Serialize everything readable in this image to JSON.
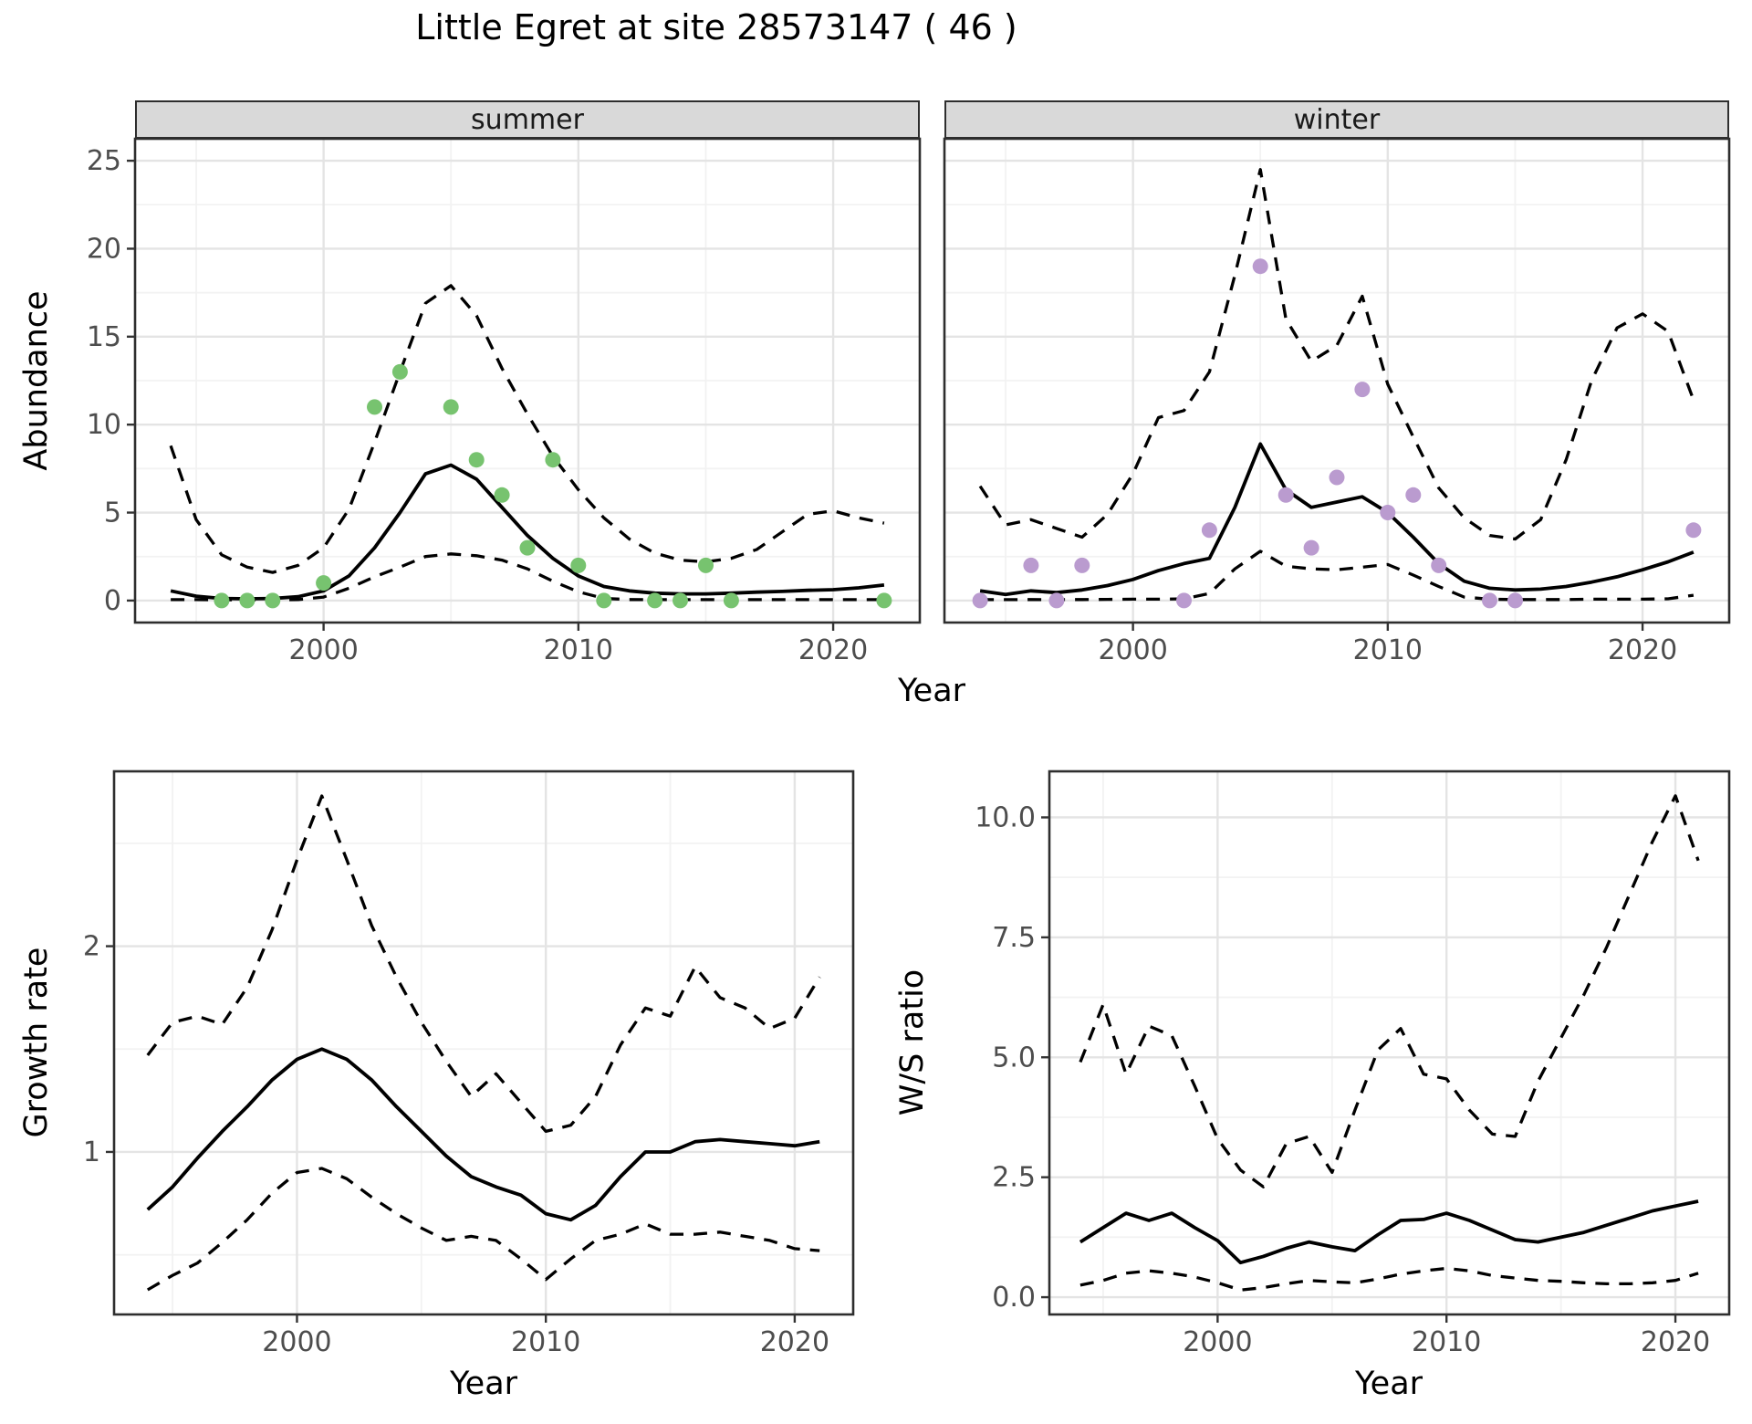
{
  "title": "Little Egret at site 28573147 ( 46 )",
  "facets": {
    "summer": "summer",
    "winter": "winter"
  },
  "axis_labels": {
    "abundance": "Abundance",
    "year": "Year",
    "growth_rate": "Growth rate",
    "ws_ratio": "W/S ratio"
  },
  "colors": {
    "summer_points": "#77C36F",
    "winter_points": "#BA9BCF",
    "line": "#000000",
    "panel_border": "#2E2E2E",
    "grid_major": "#E4E4E4",
    "grid_minor": "#F2F2F2",
    "strip_bg": "#D9D9D9",
    "tick_text": "#4D4D4D"
  },
  "chart_data": [
    {
      "id": "abundance_summer",
      "type": "line",
      "facet": "summer",
      "xlabel": "Year",
      "ylabel": "Abundance",
      "xlim": [
        1992.6,
        2023.4
      ],
      "ylim": [
        -1.25,
        26.25
      ],
      "x_tick_values": [
        2000,
        2010,
        2020
      ],
      "x_tick_labels": [
        "2000",
        "2010",
        "2020"
      ],
      "x_minor": [
        1995,
        2005,
        2015
      ],
      "y_tick_values": [
        0,
        5,
        10,
        15,
        20,
        25
      ],
      "y_tick_labels": [
        "0",
        "5",
        "10",
        "15",
        "20",
        "25"
      ],
      "y_minor": [
        2.5,
        7.5,
        12.5,
        17.5,
        22.5
      ],
      "years": [
        1994,
        1995,
        1996,
        1997,
        1998,
        1999,
        2000,
        2001,
        2002,
        2003,
        2004,
        2005,
        2006,
        2007,
        2008,
        2009,
        2010,
        2011,
        2012,
        2013,
        2014,
        2015,
        2016,
        2017,
        2018,
        2019,
        2020,
        2021,
        2022
      ],
      "series": {
        "mean": [
          0.55,
          0.25,
          0.12,
          0.1,
          0.12,
          0.22,
          0.55,
          1.4,
          3.0,
          5.0,
          7.2,
          7.7,
          6.9,
          5.3,
          3.7,
          2.4,
          1.4,
          0.8,
          0.55,
          0.42,
          0.38,
          0.38,
          0.42,
          0.48,
          0.52,
          0.58,
          0.62,
          0.72,
          0.88
        ],
        "upper_ci": [
          8.8,
          4.6,
          2.6,
          1.9,
          1.6,
          2.0,
          3.0,
          5.2,
          9.0,
          13.0,
          16.9,
          17.9,
          16.2,
          13.2,
          10.6,
          8.2,
          6.3,
          4.7,
          3.5,
          2.7,
          2.3,
          2.2,
          2.4,
          2.9,
          3.9,
          4.9,
          5.1,
          4.7,
          4.4
        ],
        "lower_ci": [
          0.05,
          0.05,
          0.04,
          0.04,
          0.04,
          0.05,
          0.2,
          0.7,
          1.35,
          1.9,
          2.5,
          2.65,
          2.55,
          2.3,
          1.8,
          1.1,
          0.5,
          0.12,
          0.06,
          0.05,
          0.05,
          0.05,
          0.05,
          0.05,
          0.05,
          0.05,
          0.05,
          0.05,
          0.05
        ]
      },
      "points": {
        "years": [
          1996,
          1997,
          1998,
          2000,
          2002,
          2003,
          2005,
          2006,
          2007,
          2008,
          2009,
          2010,
          2011,
          2013,
          2014,
          2015,
          2016,
          2022
        ],
        "values": [
          0,
          0,
          0,
          1,
          11,
          13,
          11,
          8,
          6,
          3,
          8,
          2,
          0,
          0,
          0,
          2,
          0,
          0
        ],
        "color": "#77C36F"
      }
    },
    {
      "id": "abundance_winter",
      "type": "line",
      "facet": "winter",
      "xlabel": "Year",
      "ylabel": "Abundance",
      "xlim": [
        1992.6,
        2023.4
      ],
      "ylim": [
        -1.25,
        26.25
      ],
      "x_tick_values": [
        2000,
        2010,
        2020
      ],
      "x_tick_labels": [
        "2000",
        "2010",
        "2020"
      ],
      "x_minor": [
        1995,
        2005,
        2015
      ],
      "y_tick_values": [
        0,
        5,
        10,
        15,
        20,
        25
      ],
      "y_tick_labels": [
        "0",
        "5",
        "10",
        "15",
        "20",
        "25"
      ],
      "y_minor": [
        2.5,
        7.5,
        12.5,
        17.5,
        22.5
      ],
      "years": [
        1994,
        1995,
        1996,
        1997,
        1998,
        1999,
        2000,
        2001,
        2002,
        2003,
        2004,
        2005,
        2006,
        2007,
        2008,
        2009,
        2010,
        2011,
        2012,
        2013,
        2014,
        2015,
        2016,
        2017,
        2018,
        2019,
        2020,
        2021,
        2022
      ],
      "series": {
        "mean": [
          0.55,
          0.35,
          0.55,
          0.45,
          0.6,
          0.85,
          1.2,
          1.7,
          2.1,
          2.4,
          5.3,
          8.9,
          6.3,
          5.3,
          5.6,
          5.9,
          5.0,
          3.6,
          2.1,
          1.1,
          0.7,
          0.6,
          0.65,
          0.8,
          1.05,
          1.35,
          1.75,
          2.2,
          2.75
        ],
        "upper_ci": [
          6.5,
          4.3,
          4.6,
          4.1,
          3.6,
          4.9,
          7.2,
          10.4,
          10.8,
          13.0,
          18.5,
          24.5,
          16.0,
          13.6,
          14.5,
          17.3,
          12.3,
          9.3,
          6.4,
          4.7,
          3.7,
          3.5,
          4.6,
          8.0,
          12.5,
          15.5,
          16.3,
          15.3,
          11.4
        ],
        "lower_ci": [
          0.06,
          0.05,
          0.06,
          0.05,
          0.06,
          0.07,
          0.08,
          0.08,
          0.1,
          0.4,
          1.8,
          2.8,
          1.95,
          1.8,
          1.75,
          1.9,
          2.05,
          1.45,
          0.8,
          0.2,
          0.08,
          0.06,
          0.06,
          0.06,
          0.08,
          0.08,
          0.08,
          0.1,
          0.3
        ]
      },
      "points": {
        "years": [
          1994,
          1996,
          1997,
          1998,
          2002,
          2003,
          2005,
          2006,
          2007,
          2008,
          2009,
          2010,
          2011,
          2012,
          2014,
          2015,
          2022
        ],
        "values": [
          0,
          2,
          0,
          2,
          0,
          4,
          19,
          6,
          3,
          7,
          12,
          5,
          6,
          2,
          0,
          0,
          4
        ],
        "color": "#BA9BCF"
      }
    },
    {
      "id": "growth_rate",
      "type": "line",
      "facet": null,
      "xlabel": "Year",
      "ylabel": "Growth rate",
      "xlim": [
        1992.65,
        2022.35
      ],
      "ylim": [
        0.21,
        2.85
      ],
      "x_tick_values": [
        2000,
        2010,
        2020
      ],
      "x_tick_labels": [
        "2000",
        "2010",
        "2020"
      ],
      "x_minor": [
        1995,
        2005,
        2015
      ],
      "y_tick_values": [
        1,
        2
      ],
      "y_tick_labels": [
        "1",
        "2"
      ],
      "y_minor": [
        0.5,
        1.5,
        2.5
      ],
      "years": [
        1994,
        1995,
        1996,
        1997,
        1998,
        1999,
        2000,
        2001,
        2002,
        2003,
        2004,
        2005,
        2006,
        2007,
        2008,
        2009,
        2010,
        2011,
        2012,
        2013,
        2014,
        2015,
        2016,
        2017,
        2018,
        2019,
        2020,
        2021
      ],
      "series": {
        "mean": [
          0.72,
          0.83,
          0.97,
          1.1,
          1.22,
          1.35,
          1.45,
          1.5,
          1.45,
          1.35,
          1.22,
          1.1,
          0.98,
          0.88,
          0.83,
          0.79,
          0.7,
          0.67,
          0.74,
          0.88,
          1.0,
          1.0,
          1.05,
          1.06,
          1.05,
          1.04,
          1.03,
          1.05
        ],
        "upper_ci": [
          1.47,
          1.63,
          1.66,
          1.62,
          1.8,
          2.08,
          2.42,
          2.73,
          2.42,
          2.1,
          1.85,
          1.63,
          1.44,
          1.27,
          1.38,
          1.24,
          1.1,
          1.13,
          1.27,
          1.52,
          1.7,
          1.66,
          1.9,
          1.75,
          1.7,
          1.6,
          1.65,
          1.85
        ],
        "lower_ci": [
          0.33,
          0.4,
          0.46,
          0.56,
          0.67,
          0.8,
          0.9,
          0.92,
          0.87,
          0.78,
          0.7,
          0.63,
          0.57,
          0.59,
          0.57,
          0.48,
          0.38,
          0.48,
          0.57,
          0.6,
          0.65,
          0.6,
          0.6,
          0.61,
          0.59,
          0.57,
          0.53,
          0.52
        ]
      },
      "points": null
    },
    {
      "id": "ws_ratio",
      "type": "line",
      "facet": null,
      "xlabel": "Year",
      "ylabel": "W/S ratio",
      "xlim": [
        1992.65,
        2022.35
      ],
      "ylim": [
        -0.36,
        10.96
      ],
      "x_tick_values": [
        2000,
        2010,
        2020
      ],
      "x_tick_labels": [
        "2000",
        "2010",
        "2020"
      ],
      "x_minor": [
        1995,
        2005,
        2015
      ],
      "y_tick_values": [
        0,
        2.5,
        5,
        7.5,
        10
      ],
      "y_tick_labels": [
        "0.0",
        "2.5",
        "5.0",
        "7.5",
        "10.0"
      ],
      "y_minor": [
        1.25,
        3.75,
        6.25,
        8.75
      ],
      "years": [
        1994,
        1995,
        1996,
        1997,
        1998,
        1999,
        2000,
        2001,
        2002,
        2003,
        2004,
        2005,
        2006,
        2007,
        2008,
        2009,
        2010,
        2011,
        2012,
        2013,
        2014,
        2015,
        2016,
        2017,
        2018,
        2019,
        2020,
        2021
      ],
      "series": {
        "mean": [
          1.15,
          1.45,
          1.75,
          1.6,
          1.75,
          1.45,
          1.18,
          0.72,
          0.85,
          1.02,
          1.15,
          1.05,
          0.97,
          1.3,
          1.6,
          1.62,
          1.75,
          1.6,
          1.4,
          1.2,
          1.15,
          1.25,
          1.35,
          1.5,
          1.65,
          1.8,
          1.9,
          2.0
        ],
        "upper_ci": [
          4.9,
          6.1,
          4.65,
          5.65,
          5.45,
          4.4,
          3.3,
          2.65,
          2.3,
          3.2,
          3.35,
          2.6,
          3.9,
          5.15,
          5.6,
          4.65,
          4.55,
          3.9,
          3.4,
          3.35,
          4.5,
          5.4,
          6.3,
          7.3,
          8.4,
          9.5,
          10.45,
          9.1
        ],
        "lower_ci": [
          0.25,
          0.35,
          0.5,
          0.55,
          0.5,
          0.42,
          0.3,
          0.15,
          0.2,
          0.28,
          0.35,
          0.32,
          0.3,
          0.38,
          0.48,
          0.55,
          0.6,
          0.55,
          0.45,
          0.4,
          0.35,
          0.33,
          0.3,
          0.28,
          0.28,
          0.3,
          0.35,
          0.5
        ]
      },
      "points": null
    }
  ]
}
